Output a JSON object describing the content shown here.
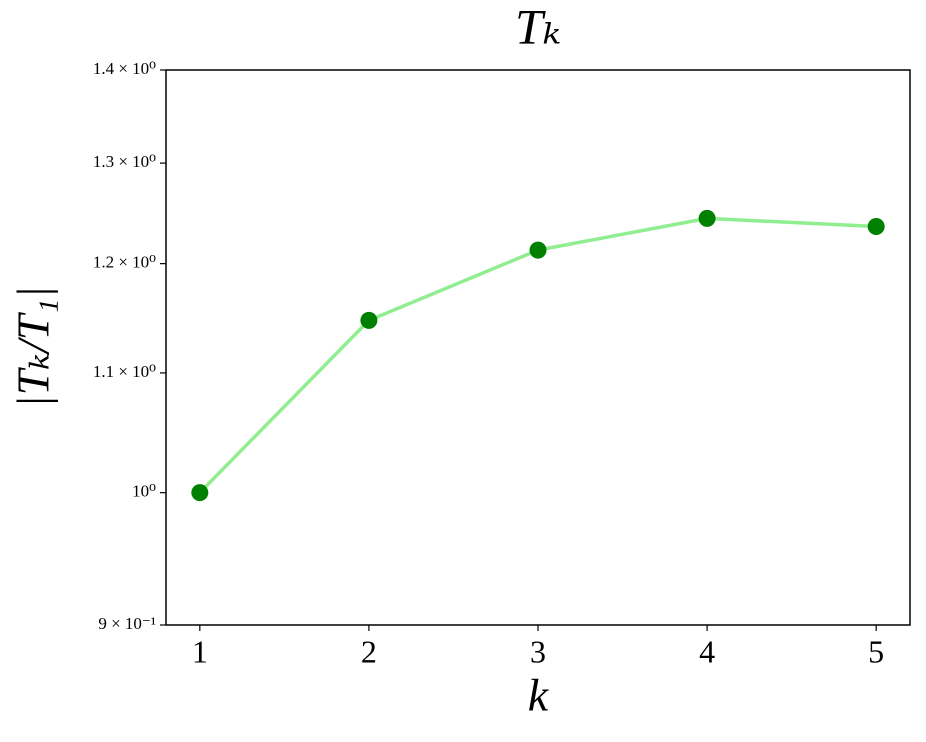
{
  "chart_data": {
    "type": "line",
    "title": "Tₖ",
    "xlabel": "k",
    "ylabel": "|Tₖ/T₁|",
    "x": [
      1,
      2,
      3,
      4,
      5
    ],
    "series": [
      {
        "values": [
          1.0,
          1.147,
          1.213,
          1.244,
          1.236
        ],
        "color": "#90ee90",
        "marker_color": "#008000"
      }
    ],
    "xlim": [
      0.8,
      5.2
    ],
    "xticks": [
      1,
      2,
      3,
      4,
      5
    ],
    "ylim": [
      0.9,
      1.4
    ],
    "yscale": "log",
    "yticks": [
      {
        "value": 0.9,
        "label": "9 × 10⁻¹"
      },
      {
        "value": 1.0,
        "label": "10⁰"
      },
      {
        "value": 1.1,
        "label": "1.1 × 10⁰"
      },
      {
        "value": 1.2,
        "label": "1.2 × 10⁰"
      },
      {
        "value": 1.3,
        "label": "1.3 × 10⁰"
      },
      {
        "value": 1.4,
        "label": "1.4 × 10⁰"
      }
    ],
    "grid": false
  }
}
